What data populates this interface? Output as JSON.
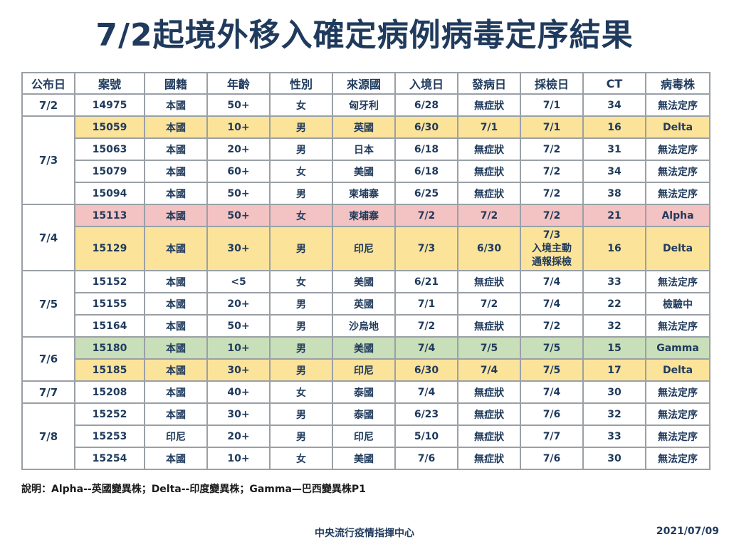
{
  "title": "7/2起境外移入確定病例病毒定序結果",
  "headers": [
    "公布日",
    "案號",
    "國籍",
    "年齡",
    "性別",
    "來源國",
    "入境日",
    "發病日",
    "採檢日",
    "CT",
    "病毒株"
  ],
  "groups": [
    {
      "date": "7/2",
      "rows": [
        {
          "case": "14975",
          "nat": "本國",
          "age": "50+",
          "sex": "女",
          "src": "匈牙利",
          "entry": "6/28",
          "onset": "無症狀",
          "sample": "7/1",
          "ct": "34",
          "strain": "無法定序",
          "color": ""
        }
      ]
    },
    {
      "date": "7/3",
      "rows": [
        {
          "case": "15059",
          "nat": "本國",
          "age": "10+",
          "sex": "男",
          "src": "英國",
          "entry": "6/30",
          "onset": "7/1",
          "sample": "7/1",
          "ct": "16",
          "strain": "Delta",
          "color": "y"
        },
        {
          "case": "15063",
          "nat": "本國",
          "age": "20+",
          "sex": "男",
          "src": "日本",
          "entry": "6/18",
          "onset": "無症狀",
          "sample": "7/2",
          "ct": "31",
          "strain": "無法定序",
          "color": ""
        },
        {
          "case": "15079",
          "nat": "本國",
          "age": "60+",
          "sex": "女",
          "src": "美國",
          "entry": "6/18",
          "onset": "無症狀",
          "sample": "7/2",
          "ct": "34",
          "strain": "無法定序",
          "color": ""
        },
        {
          "case": "15094",
          "nat": "本國",
          "age": "50+",
          "sex": "男",
          "src": "柬埔寨",
          "entry": "6/25",
          "onset": "無症狀",
          "sample": "7/2",
          "ct": "38",
          "strain": "無法定序",
          "color": ""
        }
      ]
    },
    {
      "date": "7/4",
      "rows": [
        {
          "case": "15113",
          "nat": "本國",
          "age": "50+",
          "sex": "女",
          "src": "柬埔寨",
          "entry": "7/2",
          "onset": "7/2",
          "sample": "7/2",
          "ct": "21",
          "strain": "Alpha",
          "color": "r"
        },
        {
          "case": "15129",
          "nat": "本國",
          "age": "30+",
          "sex": "男",
          "src": "印尼",
          "entry": "7/3",
          "onset": "6/30",
          "sample": "7/3\n入境主動\n通報採檢",
          "ct": "16",
          "strain": "Delta",
          "color": "y",
          "tall": true
        }
      ]
    },
    {
      "date": "7/5",
      "rows": [
        {
          "case": "15152",
          "nat": "本國",
          "age": "<5",
          "sex": "女",
          "src": "美國",
          "entry": "6/21",
          "onset": "無症狀",
          "sample": "7/4",
          "ct": "33",
          "strain": "無法定序",
          "color": ""
        },
        {
          "case": "15155",
          "nat": "本國",
          "age": "20+",
          "sex": "男",
          "src": "英國",
          "entry": "7/1",
          "onset": "7/2",
          "sample": "7/4",
          "ct": "22",
          "strain": "檢驗中",
          "color": ""
        },
        {
          "case": "15164",
          "nat": "本國",
          "age": "50+",
          "sex": "男",
          "src": "沙烏地",
          "entry": "7/2",
          "onset": "無症狀",
          "sample": "7/2",
          "ct": "32",
          "strain": "無法定序",
          "color": ""
        }
      ]
    },
    {
      "date": "7/6",
      "rows": [
        {
          "case": "15180",
          "nat": "本國",
          "age": "10+",
          "sex": "男",
          "src": "美國",
          "entry": "7/4",
          "onset": "7/5",
          "sample": "7/5",
          "ct": "15",
          "strain": "Gamma",
          "color": "g"
        },
        {
          "case": "15185",
          "nat": "本國",
          "age": "30+",
          "sex": "男",
          "src": "印尼",
          "entry": "6/30",
          "onset": "7/4",
          "sample": "7/5",
          "ct": "17",
          "strain": "Delta",
          "color": "y"
        }
      ]
    },
    {
      "date": "7/7",
      "rows": [
        {
          "case": "15208",
          "nat": "本國",
          "age": "40+",
          "sex": "女",
          "src": "泰國",
          "entry": "7/4",
          "onset": "無症狀",
          "sample": "7/4",
          "ct": "30",
          "strain": "無法定序",
          "color": ""
        }
      ]
    },
    {
      "date": "7/8",
      "rows": [
        {
          "case": "15252",
          "nat": "本國",
          "age": "30+",
          "sex": "男",
          "src": "泰國",
          "entry": "6/23",
          "onset": "無症狀",
          "sample": "7/6",
          "ct": "32",
          "strain": "無法定序",
          "color": ""
        },
        {
          "case": "15253",
          "nat": "印尼",
          "age": "20+",
          "sex": "男",
          "src": "印尼",
          "entry": "5/10",
          "onset": "無症狀",
          "sample": "7/7",
          "ct": "33",
          "strain": "無法定序",
          "color": ""
        },
        {
          "case": "15254",
          "nat": "本國",
          "age": "10+",
          "sex": "女",
          "src": "美國",
          "entry": "7/6",
          "onset": "無症狀",
          "sample": "7/6",
          "ct": "30",
          "strain": "無法定序",
          "color": ""
        }
      ]
    }
  ],
  "note": "說明：Alpha--英國變異株；Delta--印度變異株；Gamma—巴西變異株P1",
  "footer": {
    "org": "中央流行疫情指揮中心",
    "date": "2021/07/09"
  },
  "colors": {
    "title": "#1f3a5c",
    "delta": "#fce39a",
    "alpha": "#f3c2c2",
    "gamma": "#c9dfb9",
    "border": "#9aa0a6"
  }
}
